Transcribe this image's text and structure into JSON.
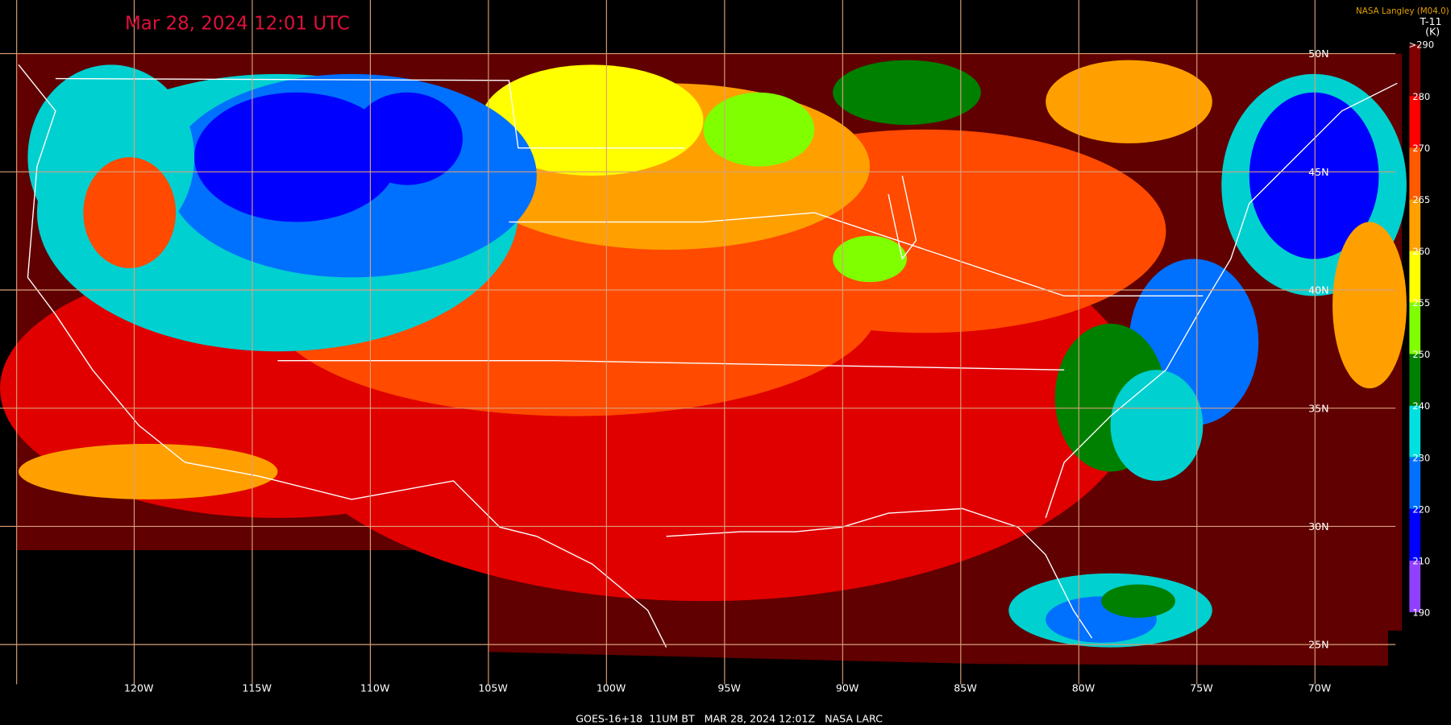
{
  "title": "Mar 28, 2024 12:01 UTC",
  "credit": "NASA Langley (M04.0)",
  "product": "T-11",
  "unit": "(K)",
  "colorbar": [
    {
      "label": ">290",
      "color": "#800000"
    },
    {
      "label": "280",
      "color": "#ff0000"
    },
    {
      "label": "270",
      "color": "#ff5a00"
    },
    {
      "label": "265",
      "color": "#ffa000"
    },
    {
      "label": "260",
      "color": "#ffff00"
    },
    {
      "label": "255",
      "color": "#80ff00"
    },
    {
      "label": "250",
      "color": "#008000"
    },
    {
      "label": "240",
      "color": "#00e0e0"
    },
    {
      "label": "230",
      "color": "#0070ff"
    },
    {
      "label": "220",
      "color": "#0000ff"
    },
    {
      "label": "210",
      "color": "#9040ff"
    },
    {
      "label": "190",
      "color": "#9040ff"
    }
  ],
  "longitudes": [
    "120W",
    "115W",
    "110W",
    "105W",
    "100W",
    "95W",
    "90W",
    "85W",
    "80W",
    "75W",
    "70W"
  ],
  "latitudes": [
    "50N",
    "45N",
    "40N",
    "35N",
    "30N",
    "25N"
  ],
  "footer": "GOES-16+18  11UM BT   MAR 28, 2024 12:01Z   NASA LARC"
}
